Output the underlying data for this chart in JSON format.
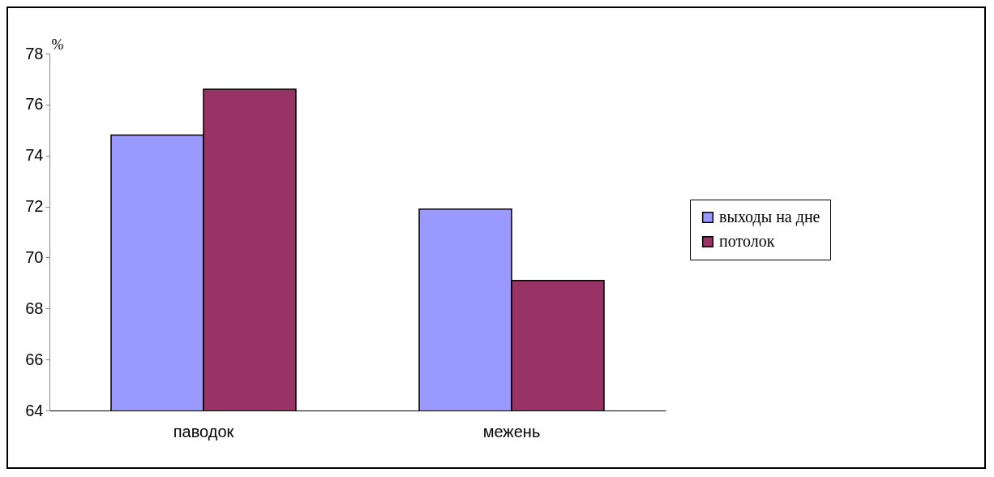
{
  "chart_data": {
    "type": "bar",
    "ylabel": "%",
    "categories": [
      "паводок",
      "межень"
    ],
    "series": [
      {
        "name": "выходы на дне",
        "color": "#9999ff",
        "values": [
          74.8,
          71.9
        ]
      },
      {
        "name": "потолок",
        "color": "#993366",
        "values": [
          76.6,
          69.1
        ]
      }
    ],
    "ylim": [
      64,
      78
    ],
    "yticks": [
      64,
      66,
      68,
      70,
      72,
      74,
      76,
      78
    ],
    "grid": false,
    "legend": "right"
  }
}
